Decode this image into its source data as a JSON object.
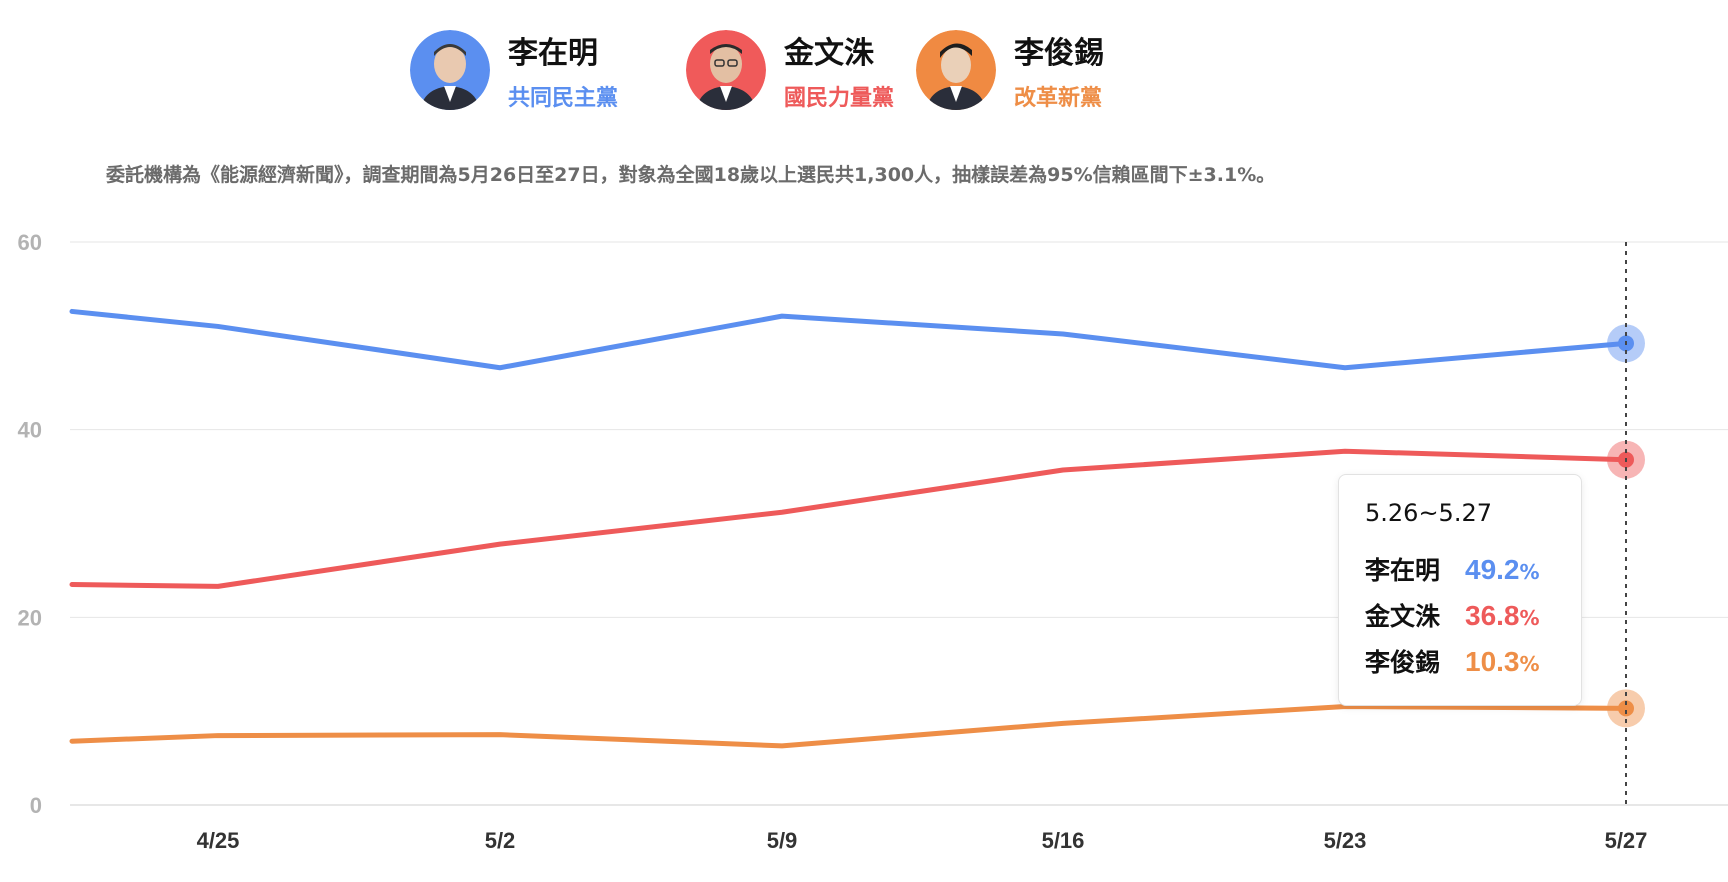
{
  "candidates": [
    {
      "name": "李在明",
      "party": "共同民主黨",
      "color": "#5b8ff0",
      "avatar_bg": "#5b8ff0"
    },
    {
      "name": "金文洙",
      "party": "國民力量黨",
      "color": "#ee5a5a",
      "avatar_bg": "#f05a5a"
    },
    {
      "name": "李俊錫",
      "party": "改革新黨",
      "color": "#ee8e47",
      "avatar_bg": "#f08a42"
    }
  ],
  "note": "委託機構為《能源經濟新聞》，調查期間為5月26日至27日，對象為全國18歲以上選民共1,300人，抽樣誤差為95%信賴區間下±3.1%。",
  "tooltip": {
    "date": "5.26~5.27",
    "rows": [
      {
        "name": "李在明",
        "value": "49.2",
        "unit": "%"
      },
      {
        "name": "金文洙",
        "value": "36.8",
        "unit": "%"
      },
      {
        "name": "李俊錫",
        "value": "10.3",
        "unit": "%"
      }
    ]
  },
  "chart_data": {
    "type": "line",
    "ylim": [
      0,
      60
    ],
    "yticks": [
      0,
      20,
      40,
      60
    ],
    "grid": true,
    "tick_labels": [
      "4/25",
      "5/2",
      "5/9",
      "5/16",
      "5/23",
      "5/27"
    ],
    "x": [
      4.2,
      4.25,
      5.2,
      5.9,
      5.16,
      5.23,
      5.27
    ],
    "series": [
      {
        "name": "李在明",
        "color": "#5b8ff0",
        "values": [
          52.6,
          51.0,
          46.6,
          52.1,
          50.2,
          46.6,
          49.2
        ]
      },
      {
        "name": "金文洙",
        "color": "#ee5a5a",
        "values": [
          23.5,
          23.3,
          27.8,
          31.2,
          35.7,
          37.7,
          36.8
        ]
      },
      {
        "name": "李俊錫",
        "color": "#ee8e47",
        "values": [
          6.8,
          7.4,
          7.5,
          6.3,
          8.7,
          10.5,
          10.3
        ]
      }
    ],
    "highlight": "5/27"
  }
}
